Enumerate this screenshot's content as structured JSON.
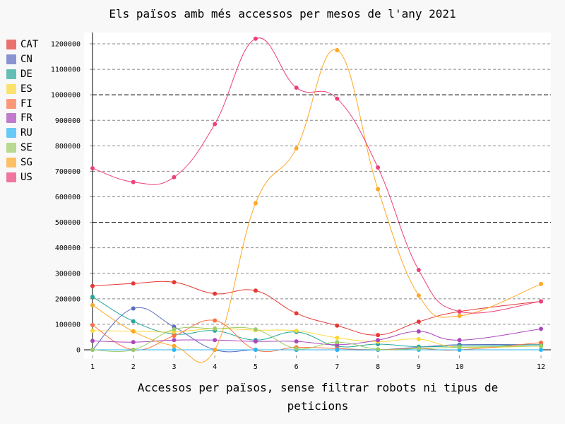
{
  "chart_data": {
    "type": "line",
    "title": "Els països amb més accessos per mesos de l'any 2021",
    "xlabel": "Accessos per països, sense filtrar robots ni tipus de peticions",
    "ylabel": "",
    "x": [
      1,
      2,
      3,
      4,
      5,
      6,
      7,
      8,
      9,
      10,
      12
    ],
    "xlim": [
      1,
      12
    ],
    "ylim": [
      0,
      1200000
    ],
    "yticks": [
      0,
      100000,
      200000,
      300000,
      400000,
      500000,
      600000,
      700000,
      800000,
      900000,
      1000000,
      1100000,
      1200000
    ],
    "ytick_labels": [
      "0",
      "100000",
      "200000",
      "300000",
      "400000",
      "500000",
      "600000",
      "700000",
      "800000",
      "900000",
      "1000000",
      "1100000",
      "1200000"
    ],
    "xtick_labels": [
      "1",
      "2",
      "3",
      "4",
      "5",
      "6",
      "7",
      "8",
      "9",
      "10",
      "12"
    ],
    "grid": true,
    "legend_position": "left",
    "series": [
      {
        "name": "CAT",
        "color": "#e53935",
        "values": [
          250000,
          260000,
          265000,
          220000,
          232000,
          143000,
          95000,
          58000,
          110000,
          150000,
          190000
        ]
      },
      {
        "name": "CN",
        "color": "#5c6bc0",
        "values": [
          0,
          162000,
          90000,
          0,
          0,
          0,
          0,
          0,
          10000,
          20000,
          20000
        ]
      },
      {
        "name": "DE",
        "color": "#26a69a",
        "values": [
          208000,
          112000,
          62000,
          75000,
          38000,
          70000,
          14000,
          22000,
          12000,
          15000,
          20000
        ]
      },
      {
        "name": "ES",
        "color": "#fdd835",
        "values": [
          75000,
          73000,
          70000,
          83000,
          77000,
          75000,
          47000,
          32000,
          42000,
          10000,
          15000
        ]
      },
      {
        "name": "FI",
        "color": "#ff7043",
        "values": [
          97000,
          0,
          55000,
          115000,
          0,
          10000,
          5000,
          0,
          5000,
          0,
          28000
        ]
      },
      {
        "name": "FR",
        "color": "#ab47bc",
        "values": [
          35000,
          30000,
          38000,
          38000,
          33000,
          33000,
          20000,
          38000,
          72000,
          38000,
          82000
        ]
      },
      {
        "name": "RU",
        "color": "#29b6f6",
        "values": [
          0,
          0,
          0,
          0,
          0,
          0,
          0,
          0,
          0,
          0,
          0
        ]
      },
      {
        "name": "SE",
        "color": "#9ccc65",
        "values": [
          0,
          0,
          80000,
          83000,
          80000,
          5000,
          30000,
          2000,
          5000,
          10000,
          15000
        ]
      },
      {
        "name": "SG",
        "color": "#ffa726",
        "values": [
          175000,
          72000,
          15000,
          0,
          575000,
          790000,
          1175000,
          630000,
          213000,
          133000,
          258000
        ]
      },
      {
        "name": "US",
        "color": "#ec407a",
        "values": [
          712000,
          658000,
          677000,
          885000,
          1220000,
          1028000,
          985000,
          715000,
          313000,
          150000,
          190000
        ]
      }
    ]
  }
}
